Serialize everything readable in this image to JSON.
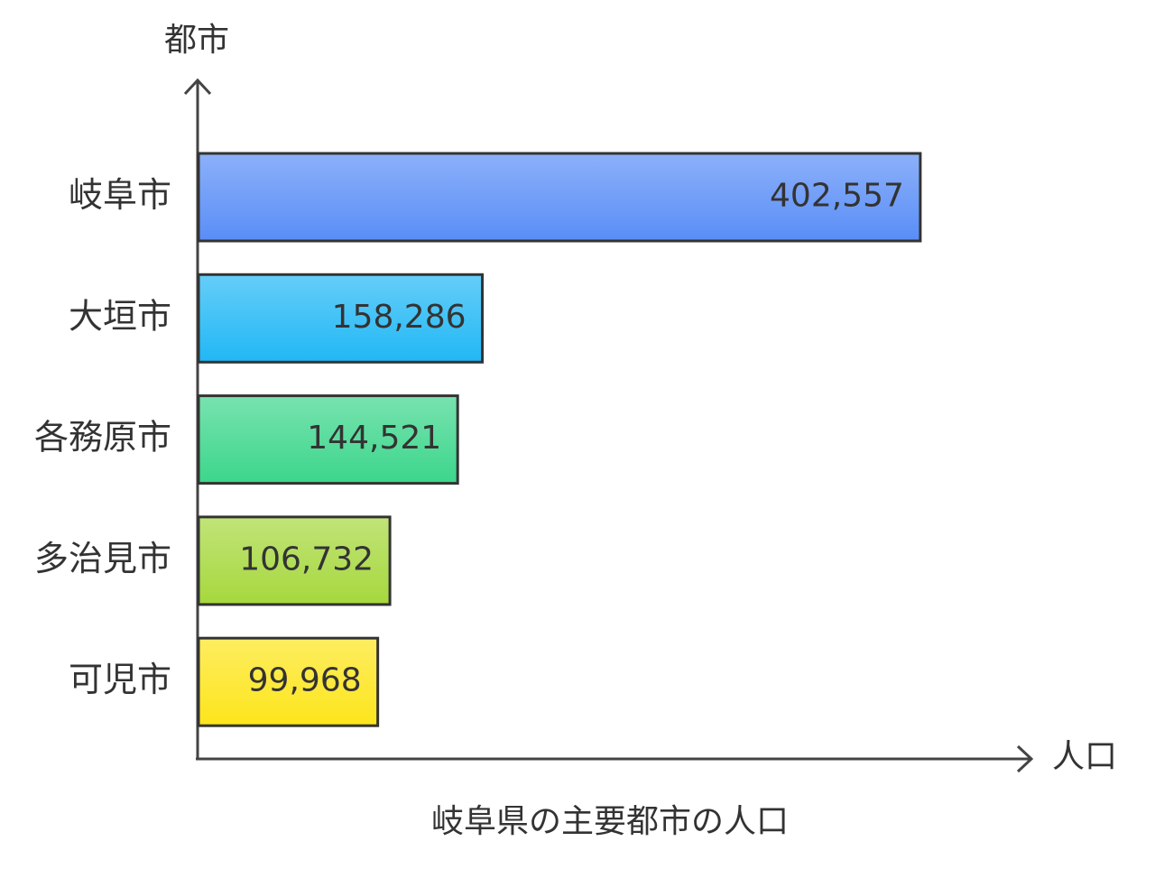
{
  "chart_data": {
    "type": "hbar",
    "title": "岐阜県の主要都市の人口",
    "x_label": "人口",
    "y_label": "都市",
    "categories": [
      "岐阜市",
      "大垣市",
      "各務原市",
      "多治見市",
      "可児市"
    ],
    "values": [
      402557,
      158286,
      144521,
      106732,
      99968
    ],
    "value_labels": [
      "402,557",
      "158,286",
      "144,521",
      "106,732",
      "99,968"
    ],
    "colors": [
      "#5a8ef7",
      "#22b8f5",
      "#3dd68c",
      "#a6d83e",
      "#fde51c"
    ],
    "xlim": [
      0,
      463000
    ]
  }
}
